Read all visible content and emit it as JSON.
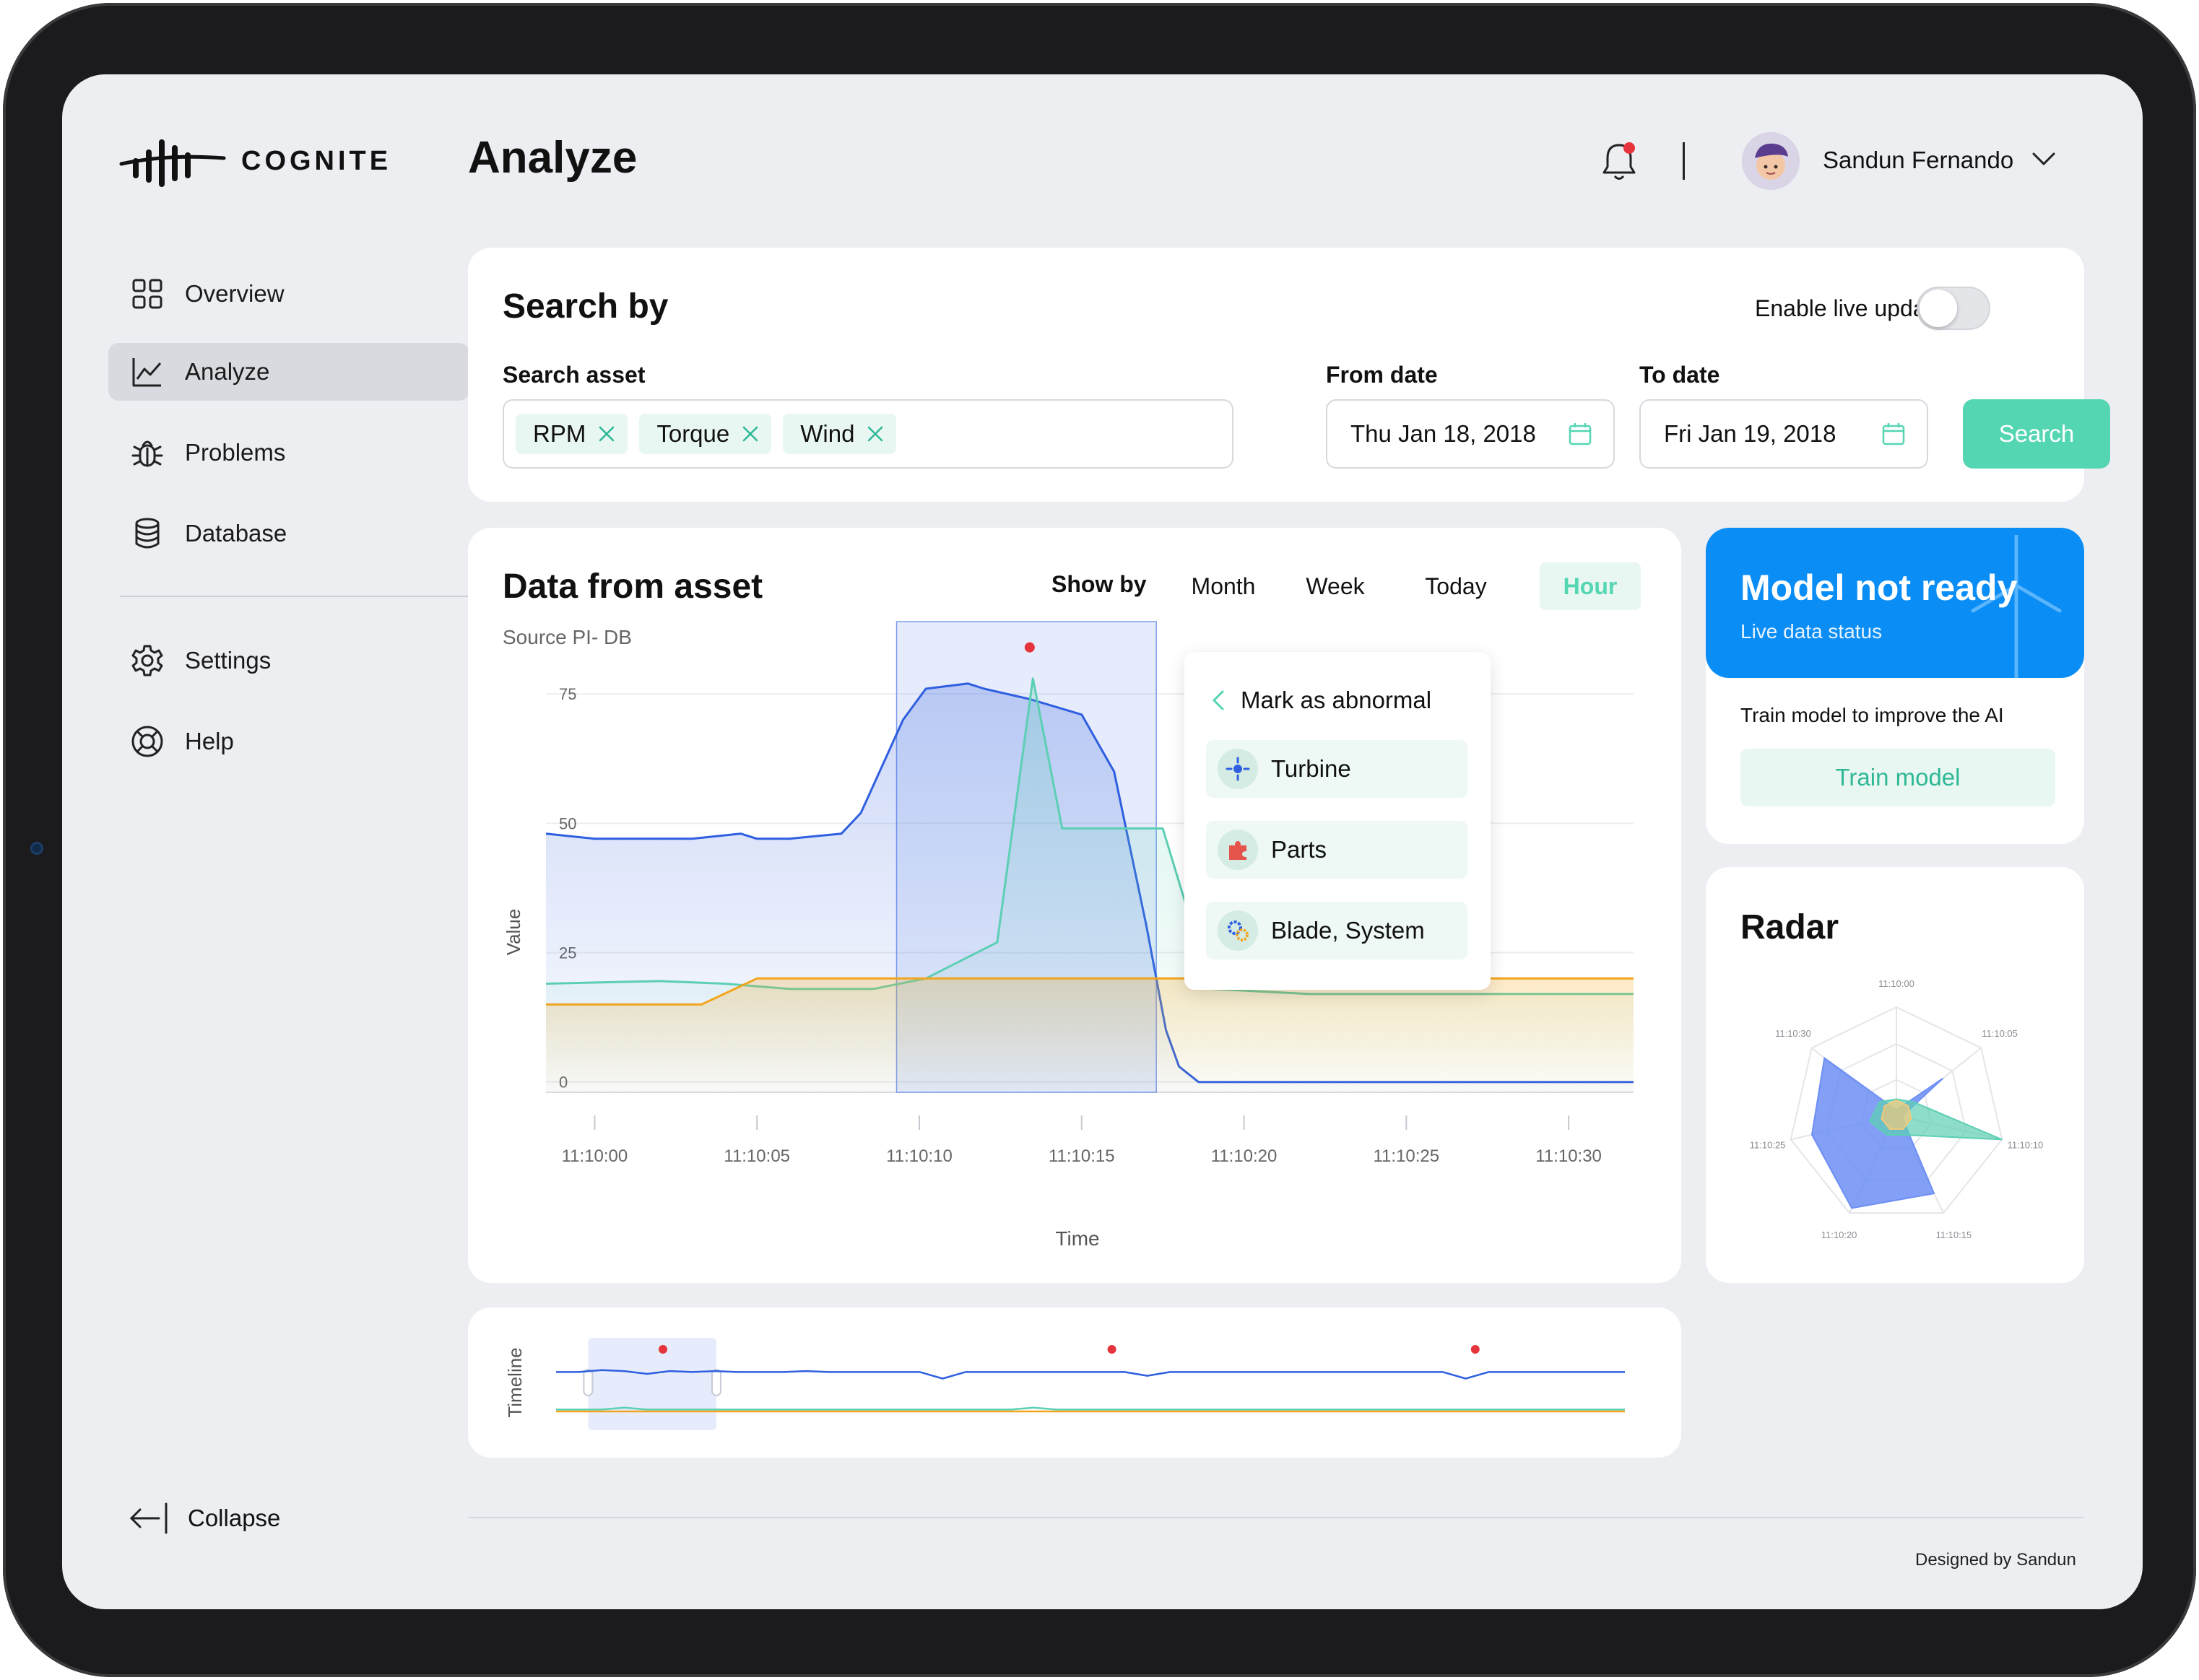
{
  "brand": {
    "name": "COGNITE"
  },
  "header": {
    "title": "Analyze",
    "user_name": "Sandun Fernando"
  },
  "sidebar": {
    "items": [
      {
        "label": "Overview",
        "icon": "grid-icon"
      },
      {
        "label": "Analyze",
        "icon": "chart-line-icon",
        "active": true
      },
      {
        "label": "Problems",
        "icon": "bug-icon"
      },
      {
        "label": "Database",
        "icon": "database-icon"
      },
      {
        "label": "Settings",
        "icon": "gear-icon"
      },
      {
        "label": "Help",
        "icon": "lifebuoy-icon"
      }
    ],
    "collapse_label": "Collapse"
  },
  "search": {
    "title": "Search by",
    "live_update_label": "Enable live update",
    "live_update_on": false,
    "asset_label": "Search asset",
    "assets": [
      "RPM",
      "Torque",
      "Wind"
    ],
    "from_label": "From date",
    "from_value": "Thu Jan 18, 2018",
    "to_label": "To date",
    "to_value": "Fri Jan 19, 2018",
    "button_label": "Search"
  },
  "data_card": {
    "title": "Data from asset",
    "source": "Source PI- DB",
    "show_by_label": "Show by",
    "ranges": [
      "Month",
      "Week",
      "Today",
      "Hour"
    ],
    "active_range": "Hour"
  },
  "popup": {
    "title": "Mark as abnormal",
    "items": [
      "Turbine",
      "Parts",
      "Blade, System"
    ]
  },
  "model": {
    "title": "Model not ready",
    "subtitle": "Live data status",
    "text": "Train model to improve the AI",
    "button_label": "Train model"
  },
  "radar": {
    "title": "Radar",
    "axes": [
      "11:10:00",
      "11:10:05",
      "11:10:10",
      "11:10:15",
      "11:10:20",
      "11:10:25",
      "11:10:30"
    ]
  },
  "timeline": {
    "label": "Timeline"
  },
  "footer": {
    "text": "Designed by Sandun"
  },
  "colors": {
    "accent": "#55d6b3",
    "blue": "#2f5fe0",
    "teal": "#5ccfb4",
    "orange": "#f2a51c",
    "alert": "#e5343b",
    "model_bg": "#0a8df5"
  },
  "chart_data": [
    {
      "type": "line",
      "xlabel": "Time",
      "ylabel": "Value",
      "x_ticks": [
        "11:10:00",
        "11:10:05",
        "11:10:10",
        "11:10:15",
        "11:10:20",
        "11:10:25",
        "11:10:30"
      ],
      "y_ticks": [
        0,
        25,
        50,
        75
      ],
      "xlim": [
        -1.5,
        32
      ],
      "ylim": [
        -2,
        82
      ],
      "highlight_range": [
        9.3,
        17.3
      ],
      "anomaly_points": [
        {
          "x": 13.4,
          "y": 84
        }
      ],
      "series": [
        {
          "color": "#2f5fe0",
          "fill": true,
          "x": [
            -1.5,
            0,
            1.5,
            3,
            4.5,
            5,
            6,
            7.6,
            8.2,
            9.5,
            10.2,
            11.5,
            12,
            12.7,
            13.4,
            15,
            16,
            17,
            17.6,
            18,
            18.6,
            19,
            22,
            25,
            28,
            30,
            32
          ],
          "y": [
            48,
            47,
            47,
            47,
            48,
            47,
            47,
            48,
            52,
            70,
            76,
            77,
            76,
            75,
            74,
            71,
            60,
            30,
            10,
            3,
            0,
            0,
            0,
            0,
            0,
            0,
            0
          ]
        },
        {
          "color": "#5ccfb4",
          "fill": true,
          "x": [
            -1.5,
            2,
            4,
            6,
            8.6,
            10.2,
            12.4,
            13.5,
            14.4,
            16.5,
            17.5,
            19,
            22,
            25,
            28,
            30.5,
            32
          ],
          "y": [
            19,
            19.5,
            19,
            18,
            18,
            20,
            27,
            78,
            49,
            49,
            49,
            18,
            17,
            17,
            17,
            17,
            17
          ]
        },
        {
          "color": "#f2a51c",
          "fill": true,
          "x": [
            -1.5,
            1,
            3.3,
            5,
            8,
            11,
            14,
            17,
            20,
            24,
            28,
            32
          ],
          "y": [
            15,
            15,
            15,
            20,
            20,
            20,
            20,
            20,
            20,
            20,
            20,
            20
          ]
        }
      ]
    },
    {
      "type": "area",
      "title": "Radar",
      "axes": [
        "11:10:00",
        "11:10:05",
        "11:10:10",
        "11:10:15",
        "11:10:20",
        "11:10:25",
        "11:10:30"
      ],
      "rmax": 1,
      "series": [
        {
          "color": "#6d8ff5",
          "values": [
            0.05,
            0.55,
            0.05,
            0.8,
            0.95,
            0.8,
            0.85
          ]
        },
        {
          "color": "#5ccfb4",
          "values": [
            0.15,
            0.2,
            1.0,
            0.2,
            0.2,
            0.25,
            0.2
          ]
        },
        {
          "color": "#f2c97a",
          "values": [
            0.14,
            0.14,
            0.14,
            0.14,
            0.14,
            0.14,
            0.14
          ]
        }
      ]
    },
    {
      "type": "line",
      "ylabel": "Timeline",
      "brush_range": [
        0.03,
        0.15
      ],
      "anomaly_points": [
        0.1,
        0.52,
        0.86
      ],
      "series": [
        {
          "color": "#2f5fe0",
          "values": [
            62,
            62,
            64,
            63,
            60,
            63,
            62,
            63,
            62,
            62,
            62,
            63,
            62,
            62,
            62,
            62,
            62,
            55,
            62,
            62,
            62,
            62,
            62,
            62,
            62,
            62,
            58,
            62,
            62,
            62,
            62,
            62,
            62,
            62,
            62,
            62,
            62,
            62,
            62,
            62,
            55,
            62,
            62,
            62,
            62,
            62,
            62,
            62
          ]
        },
        {
          "color": "#5ccfb4",
          "values": [
            22,
            22,
            22,
            24,
            22,
            22,
            22,
            22,
            22,
            22,
            22,
            22,
            22,
            22,
            22,
            22,
            22,
            22,
            22,
            22,
            22,
            24,
            22,
            22,
            22,
            22,
            22,
            22,
            22,
            22,
            22,
            22,
            22,
            22,
            22,
            22,
            22,
            22,
            22,
            22,
            22,
            22,
            22,
            22,
            22,
            22,
            22,
            22
          ]
        },
        {
          "color": "#f2a51c",
          "values": [
            20,
            20,
            20,
            20,
            20,
            20,
            20,
            20,
            20,
            20,
            20,
            20,
            20,
            20,
            20,
            20,
            20,
            20,
            20,
            20,
            20,
            20,
            20,
            20,
            20,
            20,
            20,
            20,
            20,
            20,
            20,
            20,
            20,
            20,
            20,
            20,
            20,
            20,
            20,
            20,
            20,
            20,
            20,
            20,
            20,
            20,
            20,
            20
          ]
        }
      ]
    }
  ]
}
